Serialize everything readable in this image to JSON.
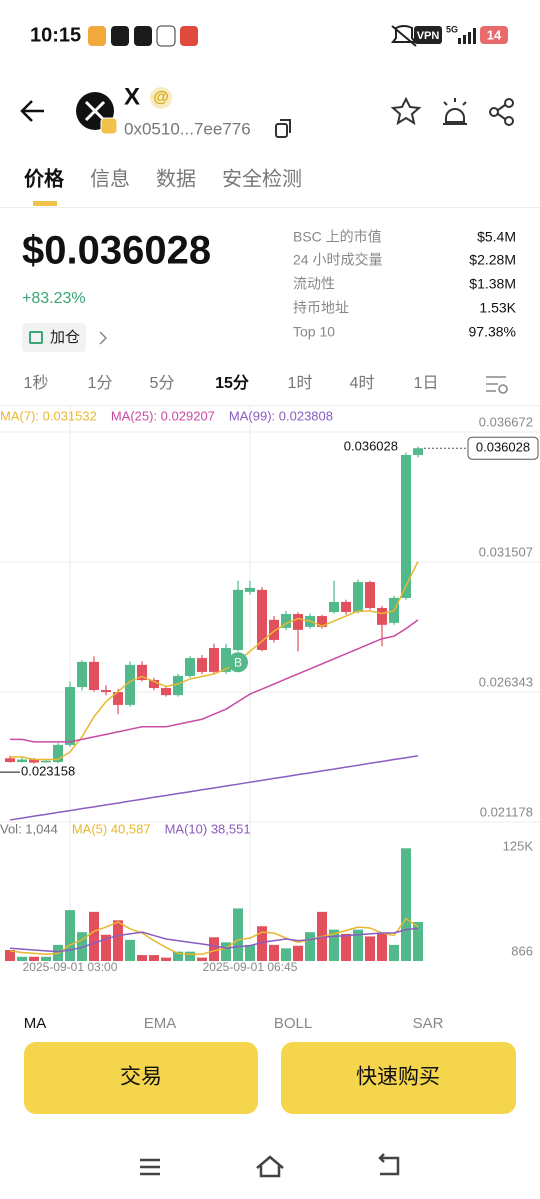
{
  "status_bar": {
    "time": "10:15",
    "vpn": "VPN",
    "network": "5G",
    "battery": "14"
  },
  "header": {
    "symbol": "X",
    "badge": "@",
    "address": "0x0510...7ee776"
  },
  "tabs": [
    "价格",
    "信息",
    "数据",
    "安全检测"
  ],
  "price": {
    "value": "$0.036028",
    "change": "+83.23%",
    "add_button": "加仓"
  },
  "stats": [
    [
      "BSC 上的市值",
      "$5.4M"
    ],
    [
      "24 小时成交量",
      "$2.28M"
    ],
    [
      "流动性",
      "$1.38M"
    ],
    [
      "持币地址",
      "1.53K"
    ],
    [
      "Top 10",
      "97.38%"
    ]
  ],
  "intervals": [
    "1秒",
    "1分",
    "5分",
    "15分",
    "1时",
    "4时",
    "1日"
  ],
  "chart_data": {
    "type": "candlestick",
    "categories": [
      null,
      null,
      null,
      null,
      null,
      "2025-09-01 03:00",
      null,
      null,
      null,
      null,
      null,
      null,
      null,
      null,
      null,
      null,
      null,
      null,
      null,
      null,
      "2025-09-01 06:45",
      null,
      null,
      null,
      null,
      null,
      null,
      null,
      null,
      null,
      null,
      null,
      null,
      null,
      null
    ],
    "open": [
      0.02371,
      0.02356,
      0.02366,
      0.02356,
      0.02356,
      0.02424,
      0.02654,
      0.02754,
      0.02642,
      0.02634,
      0.02583,
      0.02742,
      0.02682,
      0.0265,
      0.02622,
      0.02698,
      0.02769,
      0.02809,
      0.02714,
      0.02801,
      0.03032,
      0.0304,
      0.02921,
      0.02889,
      0.02944,
      0.02893,
      0.02936,
      0.02952,
      0.02992,
      0.02952,
      0.03071,
      0.02968,
      0.02909,
      0.03008,
      0.03576
    ],
    "close": [
      0.02356,
      0.02366,
      0.02354,
      0.02361,
      0.02424,
      0.02654,
      0.02754,
      0.02642,
      0.02634,
      0.02583,
      0.02742,
      0.02682,
      0.0265,
      0.02622,
      0.02698,
      0.02769,
      0.02714,
      0.02714,
      0.02809,
      0.0304,
      0.03048,
      0.02801,
      0.02841,
      0.02944,
      0.02881,
      0.02936,
      0.02893,
      0.02992,
      0.02952,
      0.03071,
      0.02968,
      0.02901,
      0.03008,
      0.03576,
      0.036028
    ],
    "high": [
      0.02381,
      0.02374,
      0.02372,
      0.02368,
      0.02431,
      0.02676,
      0.02761,
      0.02776,
      0.02661,
      0.02646,
      0.02756,
      0.02756,
      0.02691,
      0.02656,
      0.02706,
      0.02776,
      0.02781,
      0.02826,
      0.02826,
      0.03076,
      0.03076,
      0.03051,
      0.02936,
      0.02956,
      0.02951,
      0.02946,
      0.02941,
      0.03076,
      0.03001,
      0.03081,
      0.03076,
      0.02976,
      0.03016,
      0.03586,
      0.03609
    ],
    "low": [
      0.02354,
      0.02354,
      0.0235,
      0.02354,
      0.02352,
      0.02416,
      0.02641,
      0.02636,
      0.02621,
      0.02546,
      0.02576,
      0.02676,
      0.02641,
      0.02616,
      0.02616,
      0.02691,
      0.02706,
      0.02706,
      0.02706,
      0.02796,
      0.03021,
      0.02796,
      0.02831,
      0.02881,
      0.02796,
      0.02886,
      0.02886,
      0.02946,
      0.02941,
      0.02946,
      0.02961,
      0.02816,
      0.02901,
      0.03001,
      0.03566
    ],
    "low_marker": 0.023158,
    "up_color": "#52b98a",
    "down_color": "#e3505d",
    "ylim": [
      0.021178,
      0.036672
    ],
    "yticks": [
      0.021178,
      0.026343,
      0.031507,
      0.036672
    ],
    "grid": true,
    "trade_marker": "B",
    "series": [
      {
        "name": "MA(7): 0.031532",
        "color": "#e8b730",
        "values": [
          0.02376,
          0.02376,
          0.02366,
          0.02366,
          0.02366,
          0.02396,
          0.02456,
          0.02536,
          0.02596,
          0.02636,
          0.02676,
          0.02696,
          0.02676,
          0.02656,
          0.02666,
          0.02686,
          0.02696,
          0.02706,
          0.02726,
          0.02756,
          0.02796,
          0.02836,
          0.02876,
          0.02906,
          0.02926,
          0.02916,
          0.02896,
          0.02916,
          0.02936,
          0.02956,
          0.02956,
          0.02946,
          0.02956,
          0.03056,
          0.031532
        ]
      },
      {
        "name": "MA(25): 0.029207",
        "color": "#c94ba6",
        "values": [
          0.02446,
          0.02446,
          0.02436,
          0.02436,
          0.02436,
          0.02436,
          0.02446,
          0.02456,
          0.02466,
          0.02476,
          0.02486,
          0.02496,
          0.02496,
          0.02496,
          0.02506,
          0.02516,
          0.02526,
          0.02546,
          0.02566,
          0.02596,
          0.02626,
          0.02646,
          0.02666,
          0.02686,
          0.02706,
          0.02726,
          0.02746,
          0.02766,
          0.02786,
          0.02806,
          0.02826,
          0.02846,
          0.02856,
          0.02886,
          0.029207
        ]
      },
      {
        "name": "MA(99): 0.023808",
        "color": "#8a5cc0",
        "values": [
          0.02126,
          0.02133,
          0.02141,
          0.02148,
          0.02156,
          0.02163,
          0.02171,
          0.02178,
          0.02186,
          0.02193,
          0.02201,
          0.02208,
          0.02216,
          0.02223,
          0.02231,
          0.02238,
          0.02246,
          0.02253,
          0.02261,
          0.02268,
          0.02276,
          0.02283,
          0.02291,
          0.02298,
          0.02306,
          0.02313,
          0.02321,
          0.02328,
          0.02336,
          0.02343,
          0.02351,
          0.02358,
          0.02366,
          0.02373,
          0.023808
        ]
      }
    ]
  },
  "volume": {
    "legend": "Vol: 1,044",
    "values": [
      13000,
      5000,
      5000,
      5000,
      19000,
      60000,
      34000,
      58000,
      31000,
      48000,
      25000,
      7000,
      7000,
      4000,
      11000,
      11000,
      4000,
      28000,
      22000,
      62000,
      19000,
      41000,
      19000,
      15000,
      18000,
      34000,
      58000,
      37000,
      32000,
      37000,
      29000,
      32000,
      19000,
      133000,
      46000
    ],
    "ylim": [
      0,
      164000
    ],
    "yticks": [
      866,
      {
        "value": 125000,
        "label": "125K"
      }
    ],
    "series": [
      {
        "name": "MA(5) 40,587",
        "color": "#e8b730",
        "values": [
          12000,
          10000,
          9000,
          8000,
          9000,
          19000,
          25000,
          35000,
          40000,
          46000,
          38000,
          33000,
          24000,
          16000,
          9000,
          8000,
          8000,
          12000,
          15000,
          25000,
          27000,
          34000,
          33000,
          27000,
          22000,
          25000,
          29000,
          32000,
          36000,
          40000,
          39000,
          33000,
          30000,
          50000,
          40587
        ]
      },
      {
        "name": "MA(10) 38,551",
        "color": "#8a5cc0",
        "values": [
          15000,
          14000,
          13000,
          12000,
          11000,
          13000,
          16000,
          21000,
          26000,
          30000,
          32000,
          34000,
          30000,
          26000,
          24000,
          22000,
          20000,
          18000,
          15000,
          17000,
          18000,
          22000,
          24000,
          26000,
          24000,
          25000,
          28000,
          29000,
          30000,
          31000,
          32000,
          33000,
          33000,
          37000,
          38551
        ]
      }
    ]
  },
  "indicator_tabs": [
    "MA",
    "EMA",
    "BOLL",
    "SAR"
  ],
  "buttons": [
    "交易",
    "快速购买"
  ]
}
